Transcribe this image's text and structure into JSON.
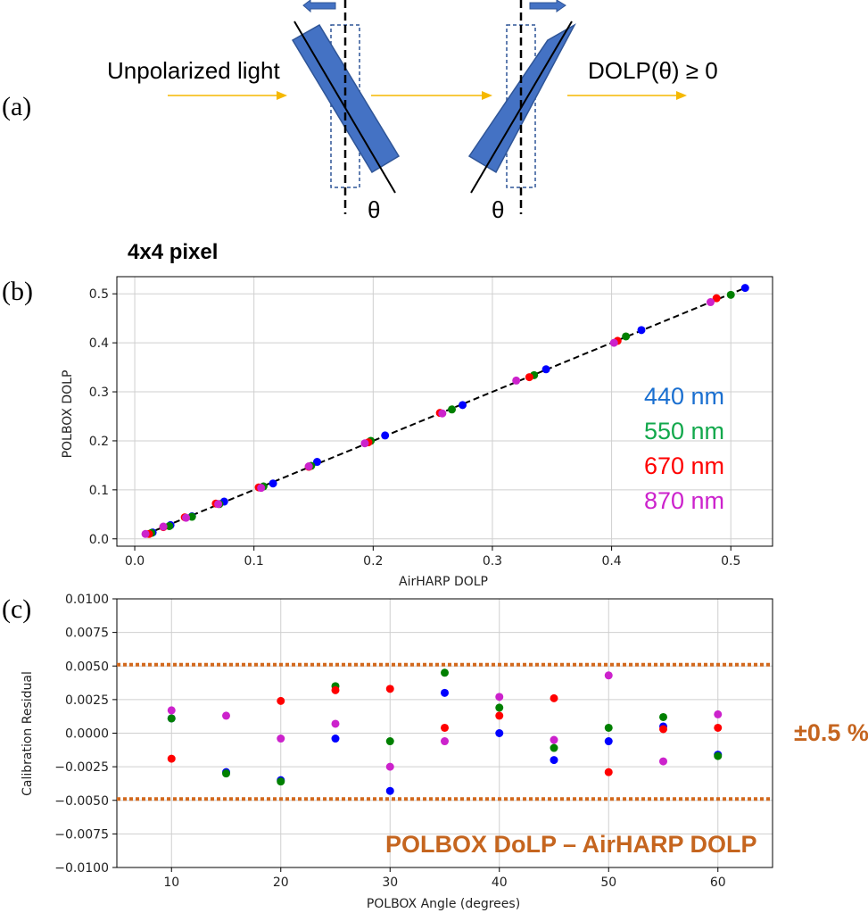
{
  "panels": {
    "a": "(a)",
    "b": "(b)",
    "c": "(c)"
  },
  "diagram": {
    "input_label": "Unpolarized light",
    "output_label": "DOLP(θ) ≥ 0",
    "theta_left": "θ",
    "theta_right": "θ",
    "arrow_color": "#f5b800",
    "plate_color": "#4472c4"
  },
  "colors": {
    "440 nm": "#0000ff",
    "550 nm": "#008000",
    "670 nm": "#ff0000",
    "870 nm": "#cc22cc"
  },
  "chart_data": [
    {
      "type": "scatter",
      "title": "4x4 pixel",
      "xlabel": "AirHARP DOLP",
      "ylabel": "POLBOX DOLP",
      "xlim": [
        -0.015,
        0.535
      ],
      "ylim": [
        -0.015,
        0.535
      ],
      "xticks": [
        "0.0",
        "0.1",
        "0.2",
        "0.3",
        "0.4",
        "0.5"
      ],
      "yticks": [
        "0.0",
        "0.1",
        "0.2",
        "0.3",
        "0.4",
        "0.5"
      ],
      "grid": true,
      "fit_line": {
        "style": "dashed",
        "color": "#000000",
        "x": [
          0.01,
          0.51
        ],
        "y": [
          0.01,
          0.51
        ]
      },
      "legend_position": "right",
      "legend_text_colors": [
        "#1a6fd0",
        "#12a84c",
        "#ff0000",
        "#cc22cc"
      ],
      "series": [
        {
          "name": "440 nm",
          "x": [
            0.015,
            0.03,
            0.048,
            0.075,
            0.116,
            0.153,
            0.21,
            0.275,
            0.345,
            0.425,
            0.512
          ],
          "y": [
            0.013,
            0.028,
            0.046,
            0.076,
            0.113,
            0.157,
            0.211,
            0.273,
            0.346,
            0.426,
            0.512
          ]
        },
        {
          "name": "550 nm",
          "x": [
            0.014,
            0.029,
            0.048,
            0.071,
            0.108,
            0.148,
            0.198,
            0.266,
            0.335,
            0.412,
            0.5
          ],
          "y": [
            0.012,
            0.026,
            0.045,
            0.071,
            0.107,
            0.149,
            0.2,
            0.264,
            0.334,
            0.413,
            0.498
          ]
        },
        {
          "name": "670 nm",
          "x": [
            0.012,
            0.024,
            0.042,
            0.068,
            0.104,
            0.146,
            0.196,
            0.256,
            0.331,
            0.405,
            0.488
          ],
          "y": [
            0.01,
            0.024,
            0.044,
            0.072,
            0.105,
            0.147,
            0.197,
            0.257,
            0.33,
            0.404,
            0.491
          ]
        },
        {
          "name": "870 nm",
          "x": [
            0.009,
            0.024,
            0.043,
            0.07,
            0.106,
            0.146,
            0.193,
            0.258,
            0.32,
            0.402,
            0.483
          ],
          "y": [
            0.01,
            0.025,
            0.043,
            0.071,
            0.104,
            0.148,
            0.195,
            0.256,
            0.323,
            0.4,
            0.483
          ]
        }
      ]
    },
    {
      "type": "scatter",
      "xlabel": "POLBOX Angle (degrees)",
      "ylabel": "Calibration Residual",
      "xlim": [
        5,
        65
      ],
      "ylim": [
        -0.01,
        0.01
      ],
      "xticks": [
        "10",
        "20",
        "30",
        "40",
        "50",
        "60"
      ],
      "yticks": [
        "0.0100",
        "0.0075",
        "0.0050",
        "0.0025",
        "0.0000",
        "−0.0025",
        "−0.0050",
        "−0.0075",
        "−0.0100"
      ],
      "grid": true,
      "bounds": {
        "values": [
          0.0051,
          -0.0049
        ],
        "style": "dotted",
        "color": "#d2691e",
        "label": "±0.5 %"
      },
      "annotation": "POLBOX DoLP – AirHARP DOLP",
      "series": [
        {
          "name": "440 nm",
          "x": [
            10,
            15,
            20,
            25,
            30,
            35,
            40,
            45,
            50,
            55,
            60
          ],
          "y": [
            0.0011,
            -0.0029,
            -0.0035,
            -0.0004,
            -0.0043,
            0.003,
            0.0,
            -0.002,
            -0.0006,
            0.0005,
            -0.0016
          ]
        },
        {
          "name": "550 nm",
          "x": [
            10,
            15,
            20,
            25,
            30,
            35,
            40,
            45,
            50,
            55,
            60
          ],
          "y": [
            0.0011,
            -0.003,
            -0.0036,
            0.0035,
            -0.0006,
            0.0045,
            0.0019,
            -0.0011,
            0.0004,
            0.0012,
            -0.0017
          ]
        },
        {
          "name": "670 nm",
          "x": [
            10,
            20,
            25,
            30,
            35,
            40,
            45,
            50,
            55,
            60
          ],
          "y": [
            -0.0019,
            0.0024,
            0.0032,
            0.0033,
            0.0004,
            0.0013,
            0.0026,
            -0.0029,
            0.0003,
            0.0004
          ]
        },
        {
          "name": "870 nm",
          "x": [
            10,
            15,
            20,
            25,
            30,
            35,
            40,
            45,
            50,
            55,
            60
          ],
          "y": [
            0.0017,
            0.0013,
            -0.0004,
            0.0007,
            -0.0025,
            -0.0006,
            0.0027,
            -0.0005,
            0.0043,
            -0.0021,
            0.0014
          ]
        }
      ]
    }
  ]
}
